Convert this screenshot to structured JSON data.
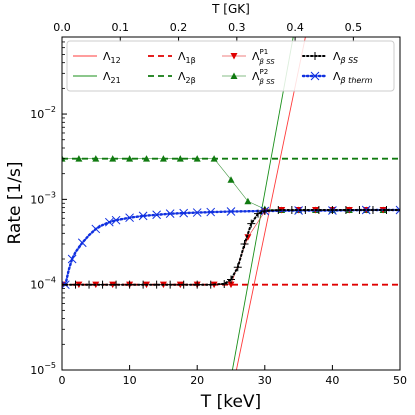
{
  "chart_data": {
    "type": "line",
    "xlabel": "T [keV]",
    "ylabel": "Rate [1/s]",
    "top_xlabel": "T [GK]",
    "xlim": [
      0,
      50
    ],
    "ylim": [
      1e-05,
      0.08
    ],
    "yscale": "log",
    "top_xlim": [
      0,
      0.58
    ],
    "x_ticks": [
      "0",
      "10",
      "20",
      "30",
      "40",
      "50"
    ],
    "x_tick_values": [
      0,
      10,
      20,
      30,
      40,
      50
    ],
    "top_x_ticks": [
      "0.0",
      "0.1",
      "0.2",
      "0.3",
      "0.4",
      "0.5"
    ],
    "top_x_tick_values": [
      0.0,
      0.1,
      0.2,
      0.3,
      0.4,
      0.5
    ],
    "y_ticks": [
      {
        "base": "10",
        "exp": "−5",
        "value": 1e-05
      },
      {
        "base": "10",
        "exp": "−4",
        "value": 0.0001
      },
      {
        "base": "10",
        "exp": "−3",
        "value": 0.001
      },
      {
        "base": "10",
        "exp": "−2",
        "value": 0.01
      }
    ],
    "grid": false,
    "legend_position": "top",
    "series": [
      {
        "name": "Λ",
        "sub": "12",
        "sup": "",
        "color": "#ff3b3b",
        "style": "solid",
        "x": [
          25.8,
          36.0
        ],
        "y": [
          1e-05,
          0.08
        ]
      },
      {
        "name": "Λ",
        "sub": "21",
        "sup": "",
        "color": "#1a8f1a",
        "style": "solid",
        "x": [
          25.2,
          34.2
        ],
        "y": [
          1e-05,
          0.08
        ]
      },
      {
        "name": "Λ",
        "sub": "1β",
        "sup": "",
        "color": "#e00000",
        "style": "dashed",
        "x": [
          0,
          50
        ],
        "y": [
          0.0001,
          0.0001
        ]
      },
      {
        "name": "Λ",
        "sub": "2β",
        "sup": "",
        "color": "#107a10",
        "style": "dashed",
        "x": [
          0,
          50
        ],
        "y": [
          0.003,
          0.003
        ]
      },
      {
        "name": "Λ",
        "sub": "β SS",
        "sup": "P1",
        "color": "#e00000",
        "style": "marker-down",
        "x": [
          0,
          2.5,
          5,
          7.5,
          10,
          12.5,
          15,
          17.5,
          20,
          22.5,
          25,
          27.5,
          30,
          32.5,
          35,
          37.5,
          40,
          42.5,
          45,
          47.5
        ],
        "y": [
          0.0001,
          0.0001,
          0.0001,
          0.0001,
          0.0001,
          0.0001,
          0.0001,
          0.0001,
          0.0001,
          0.0001,
          0.0001,
          0.00036,
          0.00072,
          0.00075,
          0.00075,
          0.00075,
          0.00075,
          0.00075,
          0.00075,
          0.00075
        ]
      },
      {
        "name": "Λ",
        "sub": "β SS",
        "sup": "P2",
        "color": "#107a10",
        "style": "marker-up",
        "x": [
          0,
          2.5,
          5,
          7.5,
          10,
          12.5,
          15,
          17.5,
          20,
          22.5,
          25,
          27.5,
          30,
          32.5,
          35,
          37.5,
          40,
          42.5,
          45,
          47.5
        ],
        "y": [
          0.003,
          0.003,
          0.003,
          0.003,
          0.003,
          0.003,
          0.003,
          0.003,
          0.003,
          0.003,
          0.0017,
          0.00095,
          0.00077,
          0.00075,
          0.00075,
          0.00075,
          0.00075,
          0.00075,
          0.00075,
          0.00075
        ]
      },
      {
        "name": "Λ",
        "sub": "β SS",
        "sup": "",
        "color": "#000000",
        "style": "dotted-plus",
        "x": [
          0,
          2,
          4,
          6,
          8,
          10,
          12,
          14,
          16,
          18,
          20,
          22,
          24,
          25,
          26,
          27,
          28,
          29,
          30,
          32,
          34,
          36,
          38,
          40,
          42,
          44,
          46,
          48,
          50
        ],
        "y": [
          0.0001,
          0.0001,
          0.0001,
          0.0001,
          0.0001,
          0.0001,
          0.0001,
          0.0001,
          0.0001,
          0.0001,
          0.0001,
          0.0001,
          0.000102,
          0.000115,
          0.00016,
          0.0003,
          0.00052,
          0.00068,
          0.00073,
          0.00075,
          0.00075,
          0.00075,
          0.00075,
          0.00075,
          0.00075,
          0.00075,
          0.00075,
          0.00075,
          0.00075
        ]
      },
      {
        "name": "Λ",
        "sub": "β therm",
        "sup": "",
        "color": "#1030e0",
        "style": "dotted-x",
        "x": [
          0.5,
          1,
          1.5,
          2,
          3,
          4,
          5,
          6,
          7,
          8,
          10,
          12,
          14,
          16,
          18,
          20,
          22,
          25,
          30,
          35,
          40,
          45,
          50
        ],
        "y": [
          0.0001,
          0.00015,
          0.0002,
          0.00024,
          0.00031,
          0.00038,
          0.00045,
          0.0005,
          0.00054,
          0.00057,
          0.00061,
          0.00064,
          0.00066,
          0.00068,
          0.00069,
          0.0007,
          0.00071,
          0.00072,
          0.00073,
          0.00074,
          0.00074,
          0.00075,
          0.00075
        ]
      }
    ]
  }
}
